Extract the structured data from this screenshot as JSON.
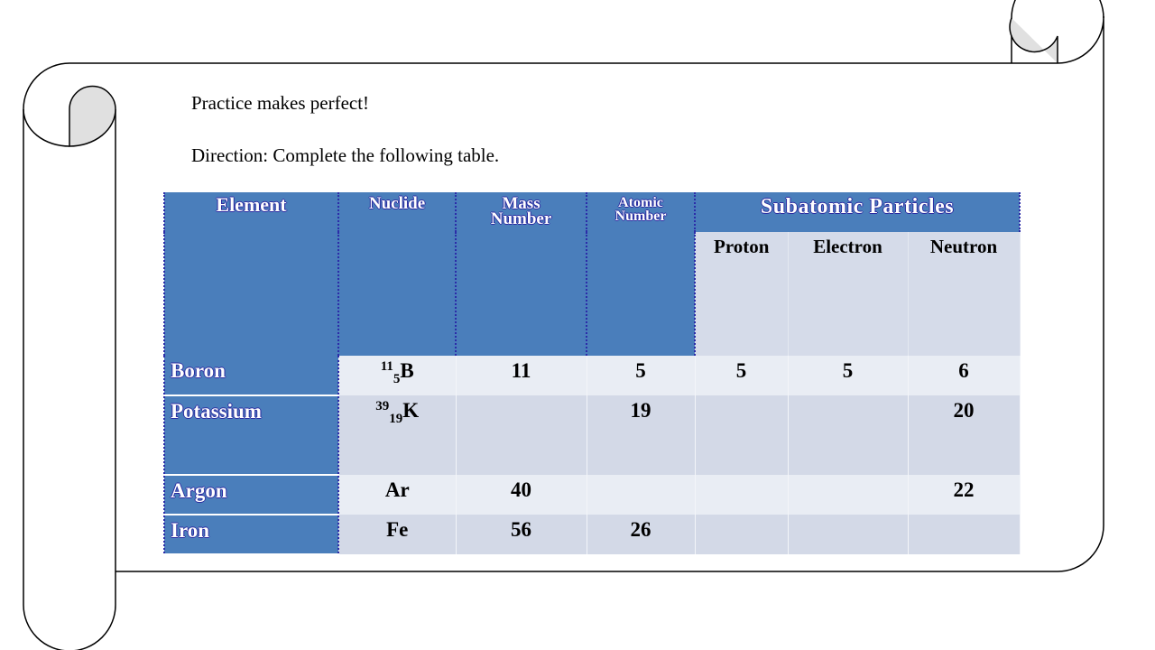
{
  "instructions": {
    "heading": "Practice makes perfect!",
    "direction": "Direction: Complete the following table."
  },
  "table": {
    "headers": {
      "element": "Element",
      "nuclide": "Nuclide",
      "mass_number": [
        "Mass",
        "Number"
      ],
      "atomic_number": [
        "Atomic",
        "Number"
      ],
      "subatomic": "Subatomic Particles",
      "proton": "Proton",
      "electron": "Electron",
      "neutron": "Neutron"
    },
    "rows": [
      {
        "element": "Boron",
        "nuclide": {
          "mass": "11",
          "atomic": "5",
          "symbol": "B"
        },
        "mass_number": "11",
        "atomic_number": "5",
        "proton": "5",
        "electron": "5",
        "neutron": "6"
      },
      {
        "element": "Potassium",
        "nuclide": {
          "mass": "39",
          "atomic": "19",
          "symbol": "K"
        },
        "mass_number": "",
        "atomic_number": "19",
        "proton": "",
        "electron": "",
        "neutron": "20"
      },
      {
        "element": "Argon",
        "nuclide": {
          "symbol": "Ar"
        },
        "mass_number": "40",
        "atomic_number": "",
        "proton": "",
        "electron": "",
        "neutron": "22"
      },
      {
        "element": "Iron",
        "nuclide": {
          "symbol": "Fe"
        },
        "mass_number": "56",
        "atomic_number": "26",
        "proton": "",
        "electron": "",
        "neutron": ""
      }
    ]
  },
  "colors": {
    "header_blue": "#4a7ebb",
    "row_light": "#e9edf4",
    "row_dark": "#d3d9e7",
    "scroll_curl": "#e0e0e0"
  }
}
